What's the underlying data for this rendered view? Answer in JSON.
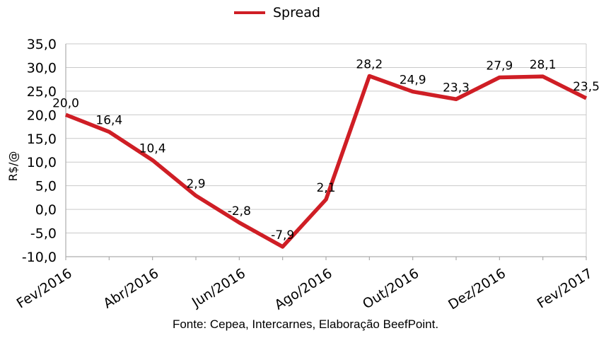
{
  "legend": {
    "label": "Spread"
  },
  "footer": {
    "text": "Fonte: Cepea, Intercarnes, Elaboração BeefPoint."
  },
  "colors": {
    "line": "#cf1e25",
    "grid": "#c9c9c9",
    "axis": "#adadad",
    "text": "#000000"
  },
  "chart_data": {
    "type": "line",
    "title": "",
    "ylabel": "R$/@",
    "xlabel": "",
    "legend_position": "top",
    "grid": "horizontal",
    "n_points": 13,
    "series": [
      {
        "name": "Spread",
        "values": [
          20.0,
          16.4,
          10.4,
          2.9,
          -2.8,
          -7.9,
          2.1,
          28.2,
          24.9,
          23.3,
          27.9,
          28.1,
          23.5
        ],
        "value_labels": [
          "20,0",
          "16,4",
          "10,4",
          "2,9",
          "-2,8",
          "-7,9",
          "2,1",
          "28,2",
          "24,9",
          "23,3",
          "27,9",
          "28,1",
          "23,5"
        ]
      }
    ],
    "x_tick_labels": [
      "Fev/2016",
      "Abr/2016",
      "Jun/2016",
      "Ago/2016",
      "Out/2016",
      "Dez/2016",
      "Fev/2017"
    ],
    "x_label_every": 2,
    "y_ticks": [
      35,
      30,
      25,
      20,
      15,
      10,
      5,
      0,
      -5,
      -10
    ],
    "y_tick_labels": [
      "35,0",
      "30,0",
      "25,0",
      "20,0",
      "15,0",
      "10,0",
      "5,0",
      "0,0",
      "-5,0",
      "-10,0"
    ],
    "ylim": [
      -10,
      35
    ]
  }
}
